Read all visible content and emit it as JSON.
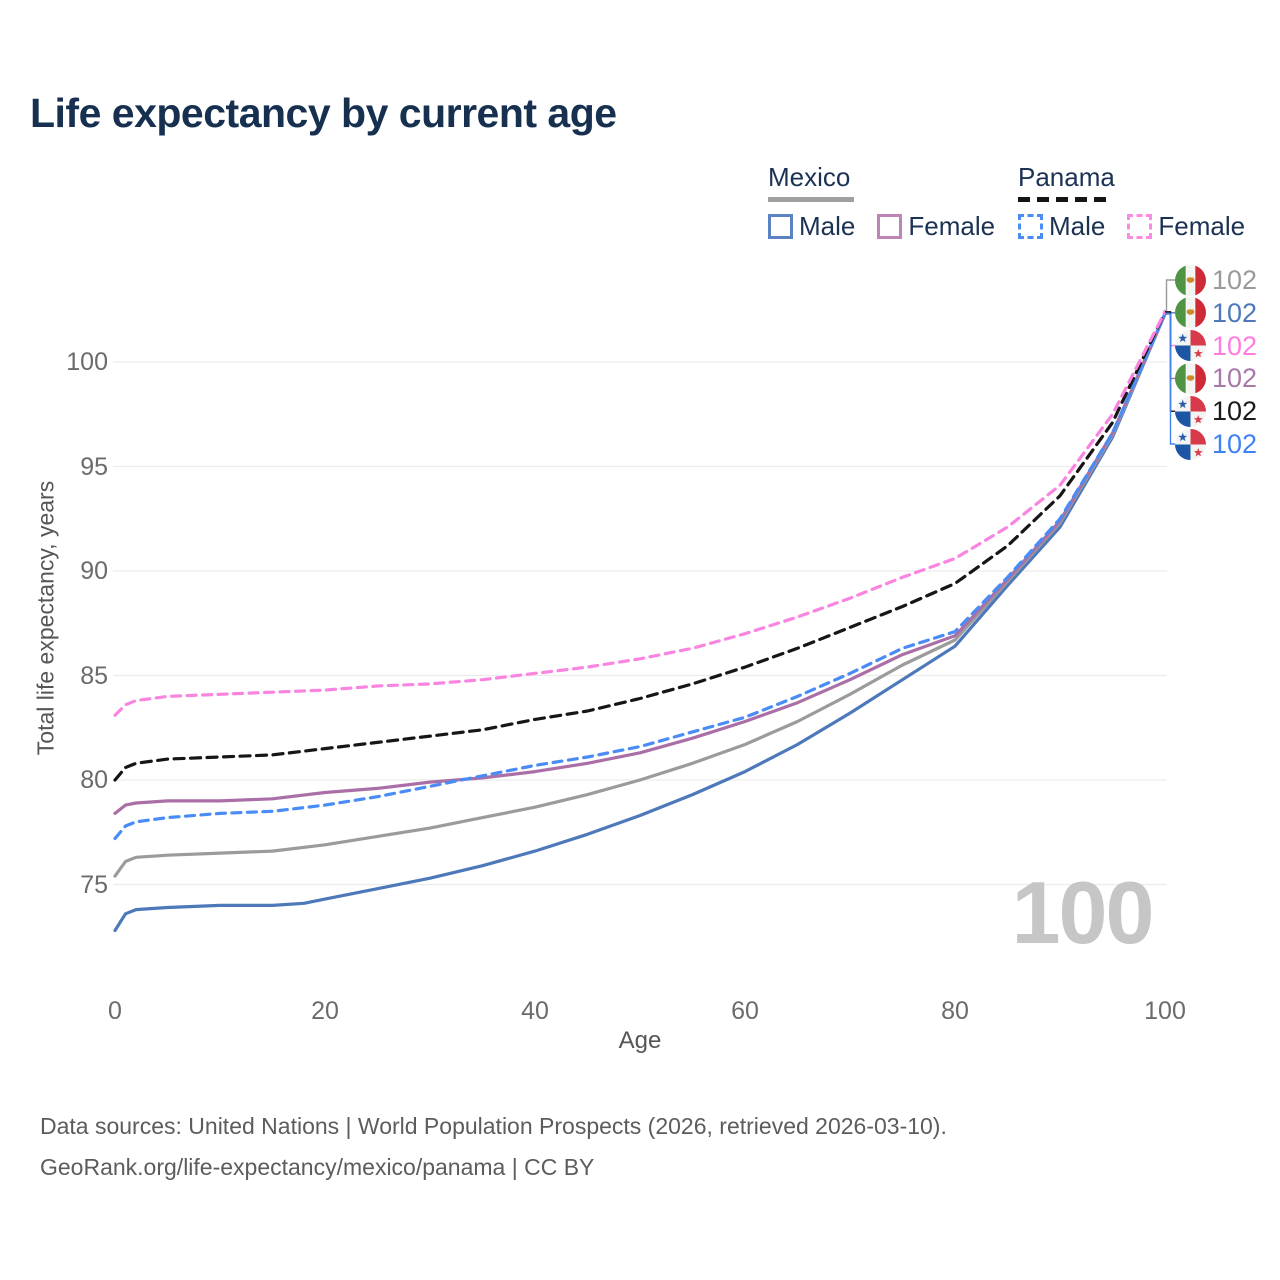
{
  "title": "Life expectancy by current age",
  "legend": {
    "groups": [
      {
        "label": "Mexico",
        "style": "solid",
        "color": "#a0a0a0"
      },
      {
        "label": "Panama",
        "style": "dashed",
        "color": "#141414"
      }
    ],
    "items": [
      {
        "group": "Mexico",
        "label": "Male",
        "color": "#5b82c2",
        "style": "solid"
      },
      {
        "group": "Mexico",
        "label": "Female",
        "color": "#bd84b6",
        "style": "solid"
      },
      {
        "group": "Panama",
        "label": "Male",
        "color": "#4a8ef5",
        "style": "dashed"
      },
      {
        "group": "Panama",
        "label": "Female",
        "color": "#fb8ae2",
        "style": "dashed"
      }
    ]
  },
  "watermark": "100",
  "footer": {
    "line1": "Data sources: United Nations | World Population Prospects (2026, retrieved 2026-03-10).",
    "line2": "GeoRank.org/life-expectancy/mexico/panama | CC BY"
  },
  "chart_data": {
    "type": "line",
    "title": "Life expectancy by current age",
    "xlabel": "Age",
    "ylabel": "Total life expectancy, years",
    "xlim": [
      0,
      100
    ],
    "ylim": [
      72,
      103
    ],
    "xticks": [
      "0",
      "20",
      "40",
      "60",
      "80",
      "100"
    ],
    "yticks": [
      "75",
      "80",
      "85",
      "90",
      "95",
      "100"
    ],
    "grid": "horizontal",
    "legend_position": "top-right",
    "hover_age": "100",
    "series": [
      {
        "id": "mexico_male",
        "name": "Mexico Male",
        "country": "mexico",
        "sex": "male",
        "color": "#4d78ba",
        "dash": "none",
        "points": [
          [
            0,
            72.8
          ],
          [
            1,
            73.6
          ],
          [
            2,
            73.8
          ],
          [
            5,
            73.9
          ],
          [
            10,
            74.0
          ],
          [
            15,
            74.0
          ],
          [
            18,
            74.1
          ],
          [
            20,
            74.3
          ],
          [
            25,
            74.8
          ],
          [
            30,
            75.3
          ],
          [
            35,
            75.9
          ],
          [
            40,
            76.6
          ],
          [
            45,
            77.4
          ],
          [
            50,
            78.3
          ],
          [
            55,
            79.3
          ],
          [
            60,
            80.4
          ],
          [
            65,
            81.7
          ],
          [
            70,
            83.2
          ],
          [
            75,
            84.8
          ],
          [
            80,
            86.4
          ],
          [
            85,
            89.3
          ],
          [
            90,
            92.1
          ],
          [
            95,
            96.4
          ],
          [
            100,
            102.3
          ]
        ]
      },
      {
        "id": "mexico_both",
        "name": "Mexico Both sexes",
        "country": "mexico",
        "sex": "both",
        "color": "#9b9b9b",
        "dash": "none",
        "points": [
          [
            0,
            75.4
          ],
          [
            1,
            76.1
          ],
          [
            2,
            76.3
          ],
          [
            5,
            76.4
          ],
          [
            10,
            76.5
          ],
          [
            15,
            76.6
          ],
          [
            20,
            76.9
          ],
          [
            25,
            77.3
          ],
          [
            30,
            77.7
          ],
          [
            35,
            78.2
          ],
          [
            40,
            78.7
          ],
          [
            45,
            79.3
          ],
          [
            50,
            80.0
          ],
          [
            55,
            80.8
          ],
          [
            60,
            81.7
          ],
          [
            65,
            82.8
          ],
          [
            70,
            84.1
          ],
          [
            75,
            85.5
          ],
          [
            80,
            86.7
          ],
          [
            85,
            89.5
          ],
          [
            90,
            92.3
          ],
          [
            95,
            96.5
          ],
          [
            100,
            102.3
          ]
        ]
      },
      {
        "id": "mexico_female",
        "name": "Mexico Female",
        "country": "mexico",
        "sex": "female",
        "color": "#ab6fa8",
        "dash": "none",
        "points": [
          [
            0,
            78.4
          ],
          [
            1,
            78.8
          ],
          [
            2,
            78.9
          ],
          [
            5,
            79.0
          ],
          [
            10,
            79.0
          ],
          [
            15,
            79.1
          ],
          [
            20,
            79.4
          ],
          [
            25,
            79.6
          ],
          [
            30,
            79.9
          ],
          [
            35,
            80.1
          ],
          [
            40,
            80.4
          ],
          [
            45,
            80.8
          ],
          [
            50,
            81.3
          ],
          [
            55,
            82.0
          ],
          [
            60,
            82.8
          ],
          [
            65,
            83.7
          ],
          [
            70,
            84.8
          ],
          [
            75,
            86.0
          ],
          [
            80,
            86.9
          ],
          [
            85,
            89.6
          ],
          [
            90,
            92.4
          ],
          [
            95,
            96.6
          ],
          [
            100,
            102.3
          ]
        ]
      },
      {
        "id": "panama_male",
        "name": "Panama Male",
        "country": "panama",
        "sex": "male",
        "color": "#4a8cf5",
        "dash": "9 6.5",
        "points": [
          [
            0,
            77.2
          ],
          [
            1,
            77.8
          ],
          [
            2,
            78.0
          ],
          [
            5,
            78.2
          ],
          [
            10,
            78.4
          ],
          [
            15,
            78.5
          ],
          [
            20,
            78.8
          ],
          [
            25,
            79.2
          ],
          [
            30,
            79.7
          ],
          [
            35,
            80.2
          ],
          [
            40,
            80.7
          ],
          [
            45,
            81.1
          ],
          [
            50,
            81.6
          ],
          [
            55,
            82.3
          ],
          [
            60,
            83.0
          ],
          [
            65,
            84.0
          ],
          [
            70,
            85.1
          ],
          [
            75,
            86.3
          ],
          [
            80,
            87.1
          ],
          [
            85,
            89.7
          ],
          [
            90,
            92.5
          ],
          [
            95,
            96.6
          ],
          [
            100,
            102.3
          ]
        ]
      },
      {
        "id": "panama_both",
        "name": "Panama Both sexes",
        "country": "panama",
        "sex": "both",
        "color": "#161616",
        "dash": "10 6.5",
        "points": [
          [
            0,
            80.0
          ],
          [
            1,
            80.6
          ],
          [
            2,
            80.8
          ],
          [
            5,
            81.0
          ],
          [
            10,
            81.1
          ],
          [
            15,
            81.2
          ],
          [
            20,
            81.5
          ],
          [
            25,
            81.8
          ],
          [
            30,
            82.1
          ],
          [
            35,
            82.4
          ],
          [
            40,
            82.9
          ],
          [
            45,
            83.3
          ],
          [
            50,
            83.9
          ],
          [
            55,
            84.6
          ],
          [
            60,
            85.4
          ],
          [
            65,
            86.3
          ],
          [
            70,
            87.3
          ],
          [
            75,
            88.3
          ],
          [
            80,
            89.4
          ],
          [
            85,
            91.2
          ],
          [
            90,
            93.6
          ],
          [
            95,
            97.1
          ],
          [
            100,
            102.4
          ]
        ]
      },
      {
        "id": "panama_female",
        "name": "Panama Female",
        "country": "panama",
        "sex": "female",
        "color": "#f985e1",
        "dash": "9 6.5",
        "points": [
          [
            0,
            83.1
          ],
          [
            1,
            83.6
          ],
          [
            2,
            83.8
          ],
          [
            5,
            84.0
          ],
          [
            10,
            84.1
          ],
          [
            15,
            84.2
          ],
          [
            20,
            84.3
          ],
          [
            25,
            84.5
          ],
          [
            30,
            84.6
          ],
          [
            35,
            84.8
          ],
          [
            40,
            85.1
          ],
          [
            45,
            85.4
          ],
          [
            50,
            85.8
          ],
          [
            55,
            86.3
          ],
          [
            60,
            87.0
          ],
          [
            65,
            87.8
          ],
          [
            70,
            88.7
          ],
          [
            75,
            89.7
          ],
          [
            80,
            90.6
          ],
          [
            85,
            92.1
          ],
          [
            90,
            94.1
          ],
          [
            95,
            97.5
          ],
          [
            100,
            102.4
          ]
        ]
      }
    ],
    "end_labels": [
      {
        "series": "mexico_both",
        "country": "mexico",
        "label": "102",
        "color": "#9a9a9a"
      },
      {
        "series": "mexico_male",
        "country": "mexico",
        "label": "102",
        "color": "#4d78ba"
      },
      {
        "series": "panama_female",
        "country": "panama",
        "label": "102",
        "color": "#ff7ce0"
      },
      {
        "series": "mexico_female",
        "country": "mexico",
        "label": "102",
        "color": "#a878a8"
      },
      {
        "series": "panama_both",
        "country": "panama",
        "label": "102",
        "color": "#1a1a1a"
      },
      {
        "series": "panama_male",
        "country": "panama",
        "label": "102",
        "color": "#3f82f0"
      }
    ]
  }
}
